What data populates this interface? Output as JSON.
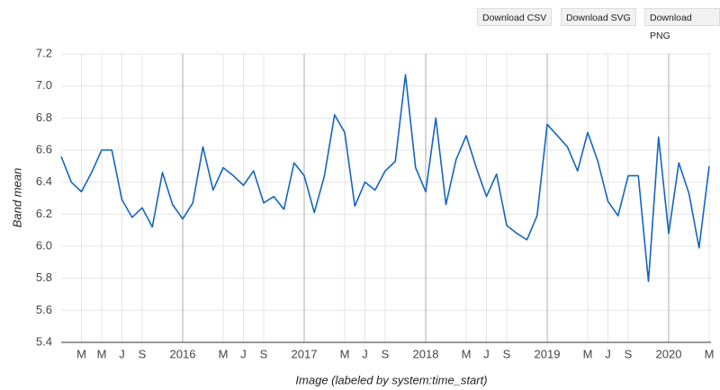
{
  "buttons": [
    "Download CSV",
    "Download SVG",
    "Download PNG"
  ],
  "chart_data": {
    "type": "line",
    "ylabel": "Band mean",
    "xlabel": "Image (labeled by system:time_start)",
    "x": [
      "2015-01",
      "2015-02",
      "2015-03",
      "2015-04",
      "2015-05",
      "2015-06",
      "2015-07",
      "2015-08",
      "2015-09",
      "2015-10",
      "2015-11",
      "2015-12",
      "2016-01",
      "2016-02",
      "2016-03",
      "2016-04",
      "2016-05",
      "2016-06",
      "2016-07",
      "2016-08",
      "2016-09",
      "2016-10",
      "2016-11",
      "2016-12",
      "2017-01",
      "2017-02",
      "2017-03",
      "2017-04",
      "2017-05",
      "2017-06",
      "2017-07",
      "2017-08",
      "2017-09",
      "2017-10",
      "2017-11",
      "2017-12",
      "2018-01",
      "2018-02",
      "2018-03",
      "2018-04",
      "2018-05",
      "2018-06",
      "2018-07",
      "2018-08",
      "2018-09",
      "2018-10",
      "2018-11",
      "2018-12",
      "2019-01",
      "2019-02",
      "2019-03",
      "2019-04",
      "2019-05",
      "2019-06",
      "2019-07",
      "2019-08",
      "2019-09",
      "2019-10",
      "2019-11",
      "2019-12",
      "2020-01",
      "2020-02",
      "2020-03",
      "2020-04",
      "2020-05"
    ],
    "series": [
      {
        "name": "Band mean",
        "color": "#1565c0",
        "values": [
          6.56,
          6.4,
          6.34,
          6.46,
          6.6,
          6.6,
          6.29,
          6.18,
          6.24,
          6.12,
          6.46,
          6.26,
          6.17,
          6.27,
          6.62,
          6.35,
          6.49,
          6.44,
          6.38,
          6.47,
          6.27,
          6.31,
          6.23,
          6.52,
          6.44,
          6.21,
          6.44,
          6.82,
          6.71,
          6.25,
          6.4,
          6.35,
          6.47,
          6.53,
          7.07,
          6.49,
          6.34,
          6.8,
          6.26,
          6.54,
          6.69,
          6.49,
          6.31,
          6.45,
          6.13,
          6.08,
          6.04,
          6.19,
          6.76,
          6.69,
          6.62,
          6.47,
          6.71,
          6.53,
          6.28,
          6.19,
          6.44,
          6.44,
          5.78,
          6.68,
          6.08,
          6.52,
          6.33,
          5.99,
          6.5
        ]
      }
    ],
    "xlim": [
      "2015-01",
      "2020-05"
    ],
    "xticks": [
      {
        "value": "2015-03",
        "label": "M"
      },
      {
        "value": "2015-05",
        "label": "M"
      },
      {
        "value": "2015-07",
        "label": "J"
      },
      {
        "value": "2015-09",
        "label": "S"
      },
      "2016",
      {
        "value": "2016-05",
        "label": "M"
      },
      {
        "value": "2016-07",
        "label": "J"
      },
      {
        "value": "2016-09",
        "label": "S"
      },
      "2017",
      {
        "value": "2017-05",
        "label": "M"
      },
      {
        "value": "2017-07",
        "label": "J"
      },
      {
        "value": "2017-09",
        "label": "S"
      },
      "2018",
      {
        "value": "2018-05",
        "label": "M"
      },
      {
        "value": "2018-07",
        "label": "J"
      },
      {
        "value": "2018-09",
        "label": "S"
      },
      "2019",
      {
        "value": "2019-05",
        "label": "M"
      },
      {
        "value": "2019-07",
        "label": "J"
      },
      {
        "value": "2019-09",
        "label": "S"
      },
      "2020",
      {
        "value": "2020-05",
        "label": "M"
      }
    ],
    "ylim": [
      5.4,
      7.2
    ],
    "yticks": [
      5.4,
      5.6,
      5.8,
      {
        "value": 6,
        "label": "6.0"
      },
      6.2,
      6.4,
      6.6,
      6.8,
      {
        "value": 7,
        "label": "7.0"
      },
      7.2
    ],
    "grid": true
  }
}
